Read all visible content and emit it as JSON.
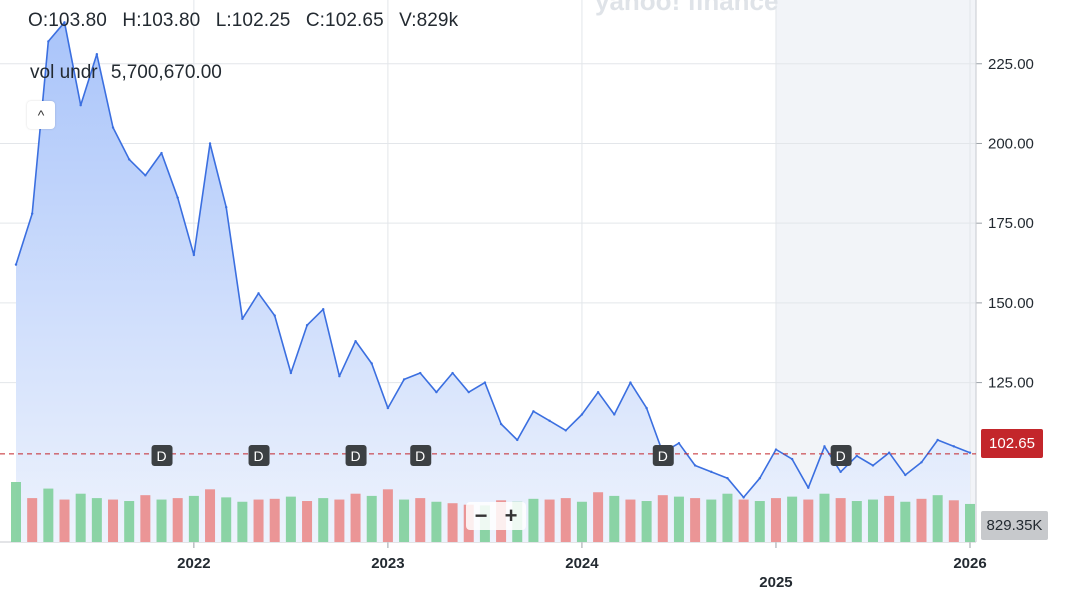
{
  "header": {
    "open": "O:103.80",
    "high": "H:103.80",
    "low": "L:102.25",
    "close": "C:102.65",
    "volume": "V:829k"
  },
  "volume_label": {
    "name": "vol undr",
    "value": "5,700,670.00"
  },
  "collapse_glyph": "^",
  "watermark": "yahoo! finance",
  "zoom": {
    "minus": "−",
    "plus": "+"
  },
  "current_price_tag": "102.65",
  "current_volume_tag": "829.35K",
  "colors": {
    "line": "#3b6fe0",
    "area_top": "#a9c4fa",
    "area_bottom": "#eef3fd",
    "grid": "#e3e6ea",
    "price_line": "#c3262b",
    "vol_up": "#7fcf9b",
    "vol_down": "#ea8b8b",
    "forecast_shade": "#f2f4f8"
  },
  "chart_data": {
    "type": "line",
    "x": [
      "2021-02",
      "2021-03",
      "2021-04",
      "2021-05",
      "2021-06",
      "2021-07",
      "2021-08",
      "2021-09",
      "2021-10",
      "2021-11",
      "2021-12",
      "2022-01",
      "2022-02",
      "2022-03",
      "2022-04",
      "2022-05",
      "2022-06",
      "2022-07",
      "2022-08",
      "2022-09",
      "2022-10",
      "2022-11",
      "2022-12",
      "2023-01",
      "2023-02",
      "2023-03",
      "2023-04",
      "2023-05",
      "2023-06",
      "2023-07",
      "2023-08",
      "2023-09",
      "2023-10",
      "2023-11",
      "2023-12",
      "2024-01",
      "2024-02",
      "2024-03",
      "2024-04",
      "2024-05",
      "2024-06",
      "2024-07",
      "2024-08",
      "2024-09",
      "2024-10",
      "2024-11",
      "2024-12",
      "2025-01",
      "2025-02",
      "2025-03",
      "2025-04",
      "2025-05",
      "2025-06",
      "2025-07",
      "2025-08",
      "2025-09",
      "2025-10",
      "2025-11",
      "2025-12",
      "2026-01"
    ],
    "series": [
      {
        "values": [
          162,
          178,
          232,
          238,
          212,
          228,
          205,
          195,
          190,
          197,
          183,
          165,
          200,
          180,
          145,
          153,
          146,
          128,
          143,
          148,
          127,
          138,
          131,
          117,
          126,
          128,
          122,
          128,
          122,
          125,
          112,
          107,
          116,
          113,
          110,
          115,
          122,
          115,
          125,
          117,
          103,
          106,
          99,
          97,
          95,
          89,
          95,
          104,
          101,
          92,
          105,
          97,
          102,
          99,
          103,
          96,
          100,
          107,
          105,
          103
        ]
      }
    ],
    "volume": [
      82,
      60,
      73,
      58,
      66,
      60,
      58,
      56,
      64,
      58,
      60,
      63,
      72,
      61,
      55,
      58,
      59,
      62,
      56,
      60,
      58,
      66,
      63,
      72,
      58,
      60,
      55,
      53,
      51,
      50,
      57,
      55,
      59,
      58,
      60,
      55,
      68,
      63,
      58,
      56,
      64,
      62,
      60,
      58,
      66,
      58,
      56,
      60,
      62,
      58,
      66,
      60,
      56,
      58,
      63,
      55,
      59,
      64,
      57,
      52
    ],
    "volume_up": [
      true,
      false,
      true,
      false,
      true,
      true,
      false,
      true,
      false,
      true,
      false,
      true,
      false,
      true,
      true,
      false,
      false,
      true,
      false,
      true,
      false,
      false,
      true,
      false,
      true,
      false,
      true,
      false,
      false,
      true,
      false,
      true,
      true,
      false,
      false,
      true,
      false,
      true,
      false,
      true,
      false,
      true,
      false,
      true,
      true,
      false,
      true,
      false,
      true,
      false,
      true,
      false,
      true,
      true,
      false,
      true,
      false,
      true,
      false,
      true
    ],
    "x_ticks": [
      "2022",
      "2023",
      "2024",
      "2025",
      "2026"
    ],
    "y_ticks": [
      "125.00",
      "150.00",
      "175.00",
      "200.00",
      "225.00"
    ],
    "ylim": [
      75,
      245
    ],
    "reference_price": 102.65,
    "dividend_marker": "D",
    "dividend_dates": [
      "2021-11",
      "2022-05",
      "2022-11",
      "2023-03",
      "2024-06",
      "2025-05"
    ]
  }
}
